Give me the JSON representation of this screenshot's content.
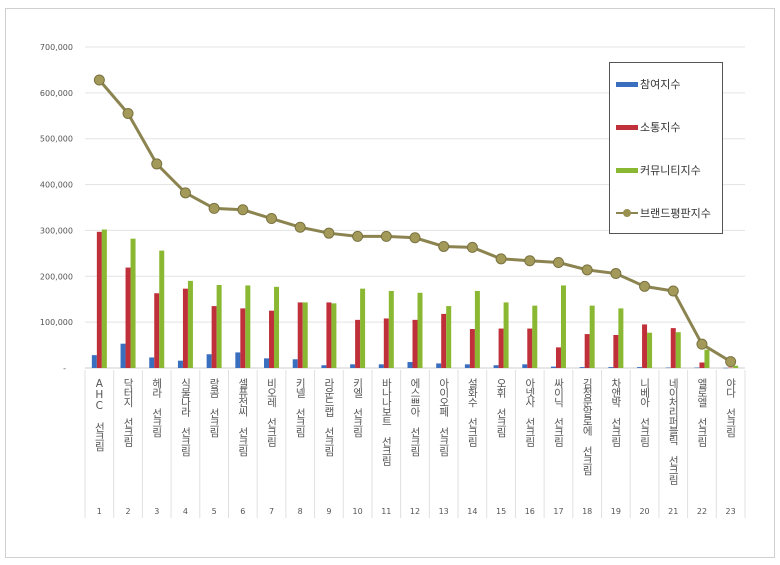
{
  "chart_data": {
    "type": "bar",
    "title": "",
    "xlabel": "",
    "ylabel": "",
    "ylim": [
      0,
      700000
    ],
    "yticks": [
      "-",
      "100,000",
      "200,000",
      "300,000",
      "400,000",
      "500,000",
      "600,000",
      "700,000"
    ],
    "grid": true,
    "legend_position": "right",
    "categories": [
      "AHC 선크림",
      "닥터지 선크림",
      "헤라 선크림",
      "식물나라 선크림",
      "랑콤 선크림",
      "셀퓨전씨 선크림",
      "비오레 선크림",
      "키넬 선크림",
      "라운드랩 선크림",
      "키엘 선크림",
      "바나나보트 선크림",
      "에스쁘아 선크림",
      "아이오페 선크림",
      "설화수 선크림",
      "오휘 선크림",
      "아넷사 선크림",
      "싸이닉 선크림",
      "김정문알로에 선크림",
      "차앤박 선크림",
      "니베아 선크림",
      "네이처리퍼블릭 선크림",
      "엘로엘 선크림",
      "야다 선크림"
    ],
    "ranks": [
      "1",
      "2",
      "3",
      "4",
      "5",
      "6",
      "7",
      "8",
      "9",
      "10",
      "11",
      "12",
      "13",
      "14",
      "15",
      "16",
      "17",
      "18",
      "19",
      "20",
      "21",
      "22",
      "23"
    ],
    "series": [
      {
        "name": "참여지수",
        "type": "bar",
        "color": "#3a6fc0",
        "values": [
          28000,
          53000,
          23000,
          16000,
          30000,
          34000,
          21000,
          19000,
          6000,
          8000,
          8000,
          13000,
          10000,
          8000,
          6000,
          8000,
          3000,
          2000,
          2000,
          2000,
          1000,
          1000,
          500
        ]
      },
      {
        "name": "소통지수",
        "type": "bar",
        "color": "#c0303a",
        "values": [
          297000,
          219000,
          163000,
          173000,
          135000,
          130000,
          125000,
          143000,
          143000,
          105000,
          108000,
          105000,
          118000,
          85000,
          86000,
          86000,
          45000,
          74000,
          72000,
          95000,
          87000,
          12000,
          1000
        ]
      },
      {
        "name": "커뮤니티지수",
        "type": "bar",
        "color": "#8ab832",
        "values": [
          302000,
          282000,
          256000,
          190000,
          181000,
          180000,
          177000,
          143000,
          141000,
          173000,
          168000,
          164000,
          135000,
          168000,
          143000,
          136000,
          180000,
          136000,
          130000,
          77000,
          78000,
          40000,
          5000
        ]
      },
      {
        "name": "브랜드평판지수",
        "type": "line",
        "color": "#8c8450",
        "values": [
          628000,
          555000,
          445000,
          382000,
          348000,
          345000,
          326000,
          307000,
          294000,
          287000,
          287000,
          284000,
          265000,
          263000,
          238000,
          234000,
          230000,
          214000,
          206000,
          178000,
          168000,
          52000,
          14000
        ]
      }
    ]
  }
}
